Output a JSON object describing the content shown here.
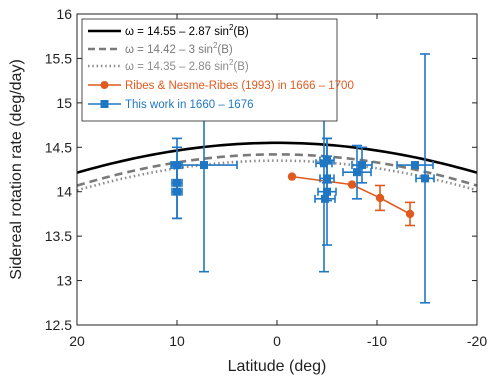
{
  "chart_data": {
    "type": "scatter",
    "xlabel": "Latitude (deg)",
    "ylabel": "Sidereal rotation rate (deg/day)",
    "xlim": [
      20,
      -20
    ],
    "ylim": [
      12.5,
      16
    ],
    "x_ticks": [
      20,
      10,
      0,
      -10,
      -20
    ],
    "x_tick_labels": [
      "20",
      "10",
      "0",
      "-10",
      "-20"
    ],
    "y_ticks": [
      12.5,
      13,
      13.5,
      14,
      14.5,
      15,
      15.5,
      16
    ],
    "y_tick_labels": [
      "12.5",
      "13",
      "13.5",
      "14",
      "14.5",
      "15",
      "15.5",
      "16"
    ],
    "x_reversed": true,
    "grid": false,
    "legend_position": "top-left",
    "colors": {
      "law1": "#000000",
      "law2": "#7a7a7a",
      "law3": "#8c8c8c",
      "ribes": "#e05a1f",
      "thiswork": "#1f77c4"
    },
    "legend": [
      {
        "prefix": "ω = 14.55 – 2.87 sin",
        "sup": "2",
        "suffix": "(B)",
        "style": "solid",
        "color": "#000000"
      },
      {
        "prefix": "ω = 14.42 – 3 sin",
        "sup": "2",
        "suffix": "(B)",
        "style": "dashed",
        "color": "#7a7a7a"
      },
      {
        "prefix": "ω = 14.35 – 2.86 sin",
        "sup": "2",
        "suffix": "(B)",
        "style": "dotted",
        "color": "#8c8c8c"
      },
      {
        "prefix": "Ribes & Nesme-Ribes (1993) in 1666 – 1700",
        "sup": "",
        "suffix": "",
        "style": "circle",
        "color": "#e05a1f"
      },
      {
        "prefix": "This work in 1660 – 1676",
        "sup": "",
        "suffix": "",
        "style": "square",
        "color": "#1f77c4"
      }
    ],
    "series": [
      {
        "name": "ω = 14.55 – 2.87 sin2(B)",
        "kind": "law",
        "A": 14.55,
        "B": 2.87,
        "style": "solid",
        "color": "#000000"
      },
      {
        "name": "ω = 14.42 – 3 sin2(B)",
        "kind": "law",
        "A": 14.42,
        "B": 3.0,
        "style": "dashed",
        "color": "#7a7a7a"
      },
      {
        "name": "ω = 14.35 – 2.86 sin2(B)",
        "kind": "law",
        "A": 14.35,
        "B": 2.86,
        "style": "dotted",
        "color": "#8c8c8c"
      },
      {
        "name": "Ribes & Nesme-Ribes (1993) in 1666 – 1700",
        "kind": "points",
        "marker": "circle",
        "connected": true,
        "color": "#e05a1f",
        "points": [
          {
            "x": -1.5,
            "y": 14.17,
            "xerr": 0,
            "yerr": 0
          },
          {
            "x": -7.5,
            "y": 14.08,
            "xerr": 0,
            "yerr": 0
          },
          {
            "x": -10.3,
            "y": 13.93,
            "xerr": 0,
            "yerr": 0.14
          },
          {
            "x": -13.3,
            "y": 13.75,
            "xerr": 0,
            "yerr": 0.13
          }
        ]
      },
      {
        "name": "This work in 1660 – 1676",
        "kind": "points",
        "marker": "square",
        "connected": false,
        "color": "#1f77c4",
        "points": [
          {
            "x": 10,
            "y": 14.3,
            "xerr": 0.5,
            "yerr": 0.3
          },
          {
            "x": 10,
            "y": 14.1,
            "xerr": 0.5,
            "yerr": 0.4
          },
          {
            "x": 10,
            "y": 14.0,
            "xerr": 0.5,
            "yerr": 0.3
          },
          {
            "x": 7.3,
            "y": 14.3,
            "xerr": 3.3,
            "yerr": 1.2
          },
          {
            "x": -5.0,
            "y": 14.35,
            "xerr": 0.7,
            "yerr": 0.25
          },
          {
            "x": -5.0,
            "y": 14.15,
            "xerr": 0.7,
            "yerr": 0.25
          },
          {
            "x": -5.0,
            "y": 14.0,
            "xerr": 0.9,
            "yerr": 0.6
          },
          {
            "x": -4.8,
            "y": 13.92,
            "xerr": 1.0,
            "yerr": 0.0
          },
          {
            "x": -4.7,
            "y": 14.32,
            "xerr": 0.8,
            "yerr": 1.22
          },
          {
            "x": -8.0,
            "y": 14.22,
            "xerr": 1.4,
            "yerr": 0.3
          },
          {
            "x": -8.5,
            "y": 14.3,
            "xerr": 1.0,
            "yerr": 0.2
          },
          {
            "x": -13.8,
            "y": 14.3,
            "xerr": 1.8,
            "yerr": 0
          },
          {
            "x": -14.8,
            "y": 14.15,
            "xerr": 0.9,
            "yerr": 1.4
          }
        ]
      }
    ]
  }
}
